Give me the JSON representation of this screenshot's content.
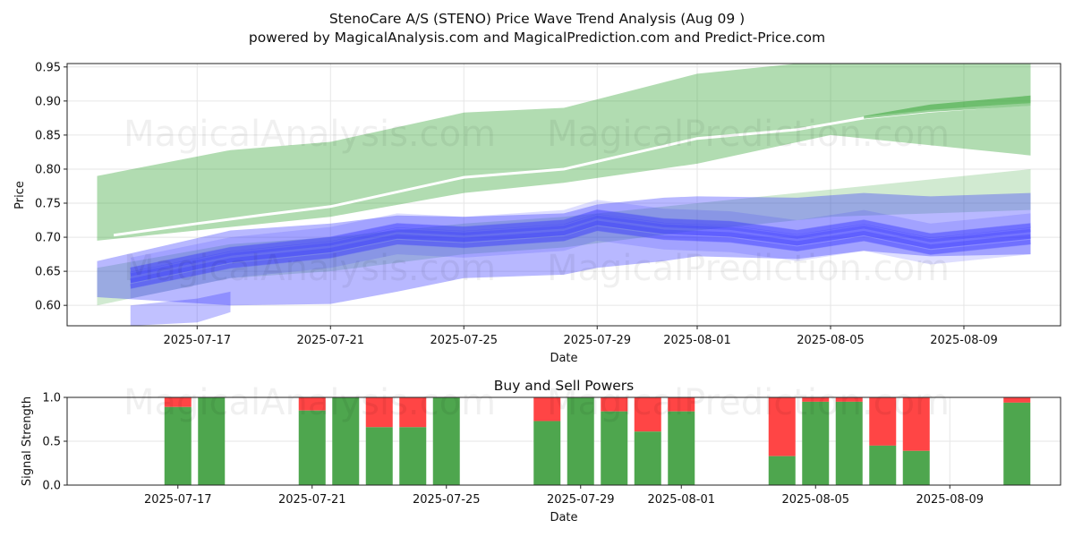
{
  "title_line1": "StenoCare A/S (STENO) Price Wave Trend Analysis (Aug 09 )",
  "title_line2": "powered by MagicalAnalysis.com and MagicalPrediction.com and Predict-Price.com",
  "watermarks": [
    "MagicalAnalysis.com",
    "MagicalPrediction.com"
  ],
  "colors": {
    "green": "#2ca02c",
    "blue": "#3333ff",
    "buy": "#4ea64e",
    "sell": "#ff4545"
  },
  "chart_data": [
    {
      "type": "area",
      "name": "price-wave",
      "xlabel": "Date",
      "ylabel": "Price",
      "ylim": [
        0.57,
        0.955
      ],
      "yticks": [
        0.6,
        0.65,
        0.7,
        0.75,
        0.8,
        0.85,
        0.9,
        0.95
      ],
      "ytick_labels": [
        "0.60",
        "0.65",
        "0.70",
        "0.75",
        "0.80",
        "0.85",
        "0.90",
        "0.95"
      ],
      "xlim": [
        -2.9,
        26.9
      ],
      "xtick_days": [
        1,
        5,
        9,
        13,
        16,
        20,
        24
      ],
      "xtick_labels": [
        "2025-07-17",
        "2025-07-21",
        "2025-07-25",
        "2025-07-29",
        "2025-08-01",
        "2025-08-05",
        "2025-08-09"
      ],
      "green_band": {
        "x": [
          -2.0,
          2.0,
          5.0,
          9.0,
          12.0,
          16.0,
          20.0,
          26.0
        ],
        "upper": [
          0.79,
          0.828,
          0.84,
          0.883,
          0.89,
          0.94,
          0.96,
          0.955
        ],
        "lower": [
          0.695,
          0.715,
          0.73,
          0.765,
          0.78,
          0.808,
          0.85,
          0.82
        ]
      },
      "green_inner_band": {
        "x": [
          -2.0,
          2.0,
          5.0,
          9.0,
          12.0,
          16.0,
          20.0,
          26.0
        ],
        "upper": [
          0.655,
          0.69,
          0.7,
          0.72,
          0.73,
          0.75,
          0.77,
          0.8
        ],
        "lower": [
          0.6,
          0.64,
          0.65,
          0.675,
          0.685,
          0.71,
          0.73,
          0.74
        ]
      },
      "white_trend": {
        "x": [
          -1.5,
          1.0,
          3.0,
          5.0,
          9.0,
          12.0,
          16.0,
          19.0,
          21.0,
          23.0,
          25.0,
          26.0
        ],
        "y": [
          0.703,
          0.72,
          0.733,
          0.745,
          0.788,
          0.8,
          0.845,
          0.858,
          0.875,
          0.885,
          0.892,
          0.895
        ]
      },
      "green_dark_band": {
        "x": [
          21.0,
          23.0,
          26.0
        ],
        "upper": [
          0.878,
          0.895,
          0.908
        ],
        "lower": [
          0.874,
          0.884,
          0.893
        ]
      },
      "blue_center": {
        "x": [
          -1.0,
          2.0,
          5.0,
          7.0,
          9.0,
          12.0,
          13.0,
          15.0,
          17.0,
          19.0,
          21.0,
          23.0,
          25.0,
          26.0
        ],
        "y": [
          0.64,
          0.67,
          0.685,
          0.705,
          0.7,
          0.71,
          0.725,
          0.712,
          0.708,
          0.695,
          0.71,
          0.69,
          0.7,
          0.705
        ]
      },
      "blue_wide_band": {
        "x": [
          -2.0,
          2.0,
          5.0,
          7.0,
          9.0,
          12.0,
          13.0,
          15.0,
          16.0,
          19.0,
          21.0,
          23.0,
          26.0
        ],
        "upper": [
          0.665,
          0.71,
          0.72,
          0.732,
          0.73,
          0.735,
          0.748,
          0.758,
          0.76,
          0.758,
          0.765,
          0.76,
          0.765
        ],
        "lower": [
          0.612,
          0.6,
          0.602,
          0.62,
          0.64,
          0.645,
          0.655,
          0.665,
          0.672,
          0.668,
          0.68,
          0.672,
          0.675
        ]
      },
      "blue_lower_spike": {
        "x": [
          -1.0,
          1.0,
          2.0
        ],
        "upper": [
          0.6,
          0.61,
          0.62
        ],
        "lower": [
          0.57,
          0.575,
          0.59
        ]
      }
    },
    {
      "type": "bar",
      "name": "buy-sell-powers",
      "title": "Buy and Sell Powers",
      "xlabel": "Date",
      "ylabel": "Signal Strength",
      "ylim": [
        0,
        1
      ],
      "yticks": [
        0.0,
        0.5,
        1.0
      ],
      "ytick_labels": [
        "0.0",
        "0.5",
        "1.0"
      ],
      "xlim": [
        -2.3,
        27.3
      ],
      "xtick_days": [
        1,
        5,
        9,
        13,
        16,
        20,
        24
      ],
      "xtick_labels": [
        "2025-07-17",
        "2025-07-21",
        "2025-07-25",
        "2025-07-29",
        "2025-08-01",
        "2025-08-05",
        "2025-08-09"
      ],
      "bars": [
        {
          "day": 1,
          "buy": 0.89
        },
        {
          "day": 2,
          "buy": 1.0
        },
        {
          "day": 5,
          "buy": 0.85
        },
        {
          "day": 6,
          "buy": 1.0
        },
        {
          "day": 7,
          "buy": 0.66
        },
        {
          "day": 8,
          "buy": 0.66
        },
        {
          "day": 9,
          "buy": 1.0
        },
        {
          "day": 12,
          "buy": 0.73
        },
        {
          "day": 13,
          "buy": 1.0
        },
        {
          "day": 14,
          "buy": 0.84
        },
        {
          "day": 15,
          "buy": 0.61
        },
        {
          "day": 16,
          "buy": 0.84
        },
        {
          "day": 19,
          "buy": 0.33
        },
        {
          "day": 20,
          "buy": 0.95
        },
        {
          "day": 21,
          "buy": 0.95
        },
        {
          "day": 22,
          "buy": 0.45
        },
        {
          "day": 23,
          "buy": 0.39
        },
        {
          "day": 26,
          "buy": 0.94
        }
      ]
    }
  ]
}
